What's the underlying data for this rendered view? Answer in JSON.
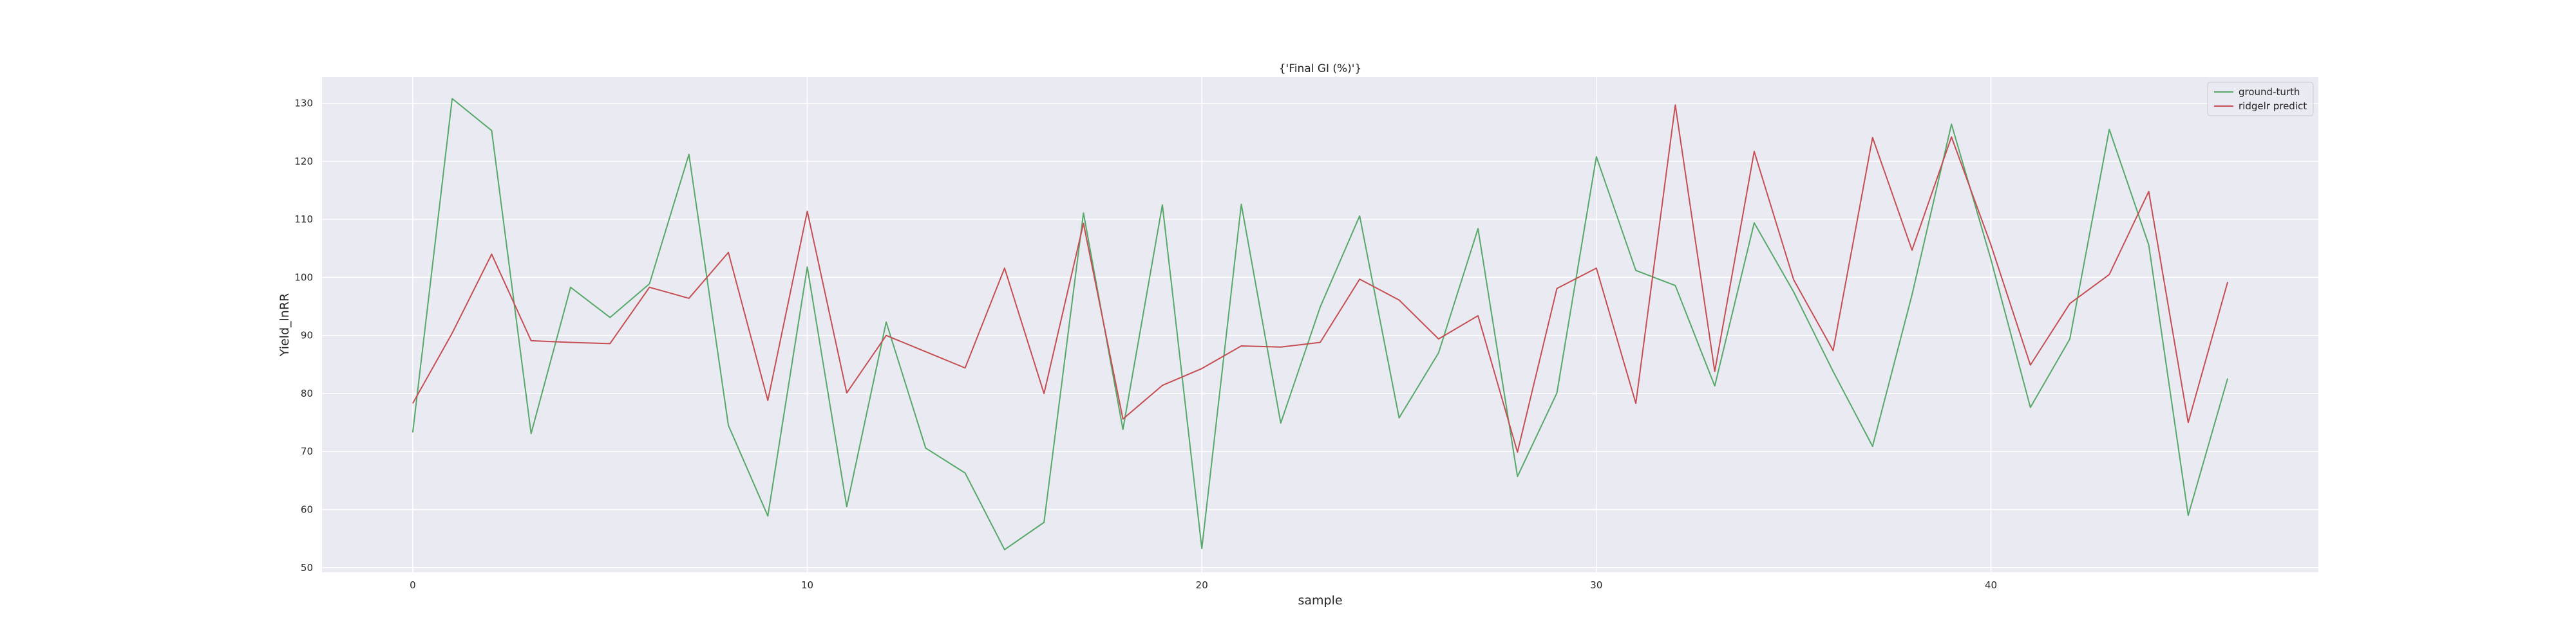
{
  "chart_data": {
    "type": "line",
    "title": "{'Final GI (%)'}",
    "xlabel": "sample",
    "ylabel": "Yield_lnRR",
    "xlim": [
      -2.3,
      48.3
    ],
    "ylim": [
      49.2,
      134.5
    ],
    "xticks": [
      0,
      10,
      20,
      30,
      40
    ],
    "yticks": [
      50,
      60,
      70,
      80,
      90,
      100,
      110,
      120,
      130
    ],
    "grid": true,
    "legend_position": "top-right",
    "series": [
      {
        "name": "ground-turth",
        "color": "#55a868",
        "values": [
          73.3,
          130.8,
          125.3,
          73.1,
          98.3,
          93.1,
          98.9,
          121.2,
          74.5,
          58.9,
          101.8,
          60.5,
          92.3,
          70.6,
          66.3,
          53.1,
          57.8,
          111.1,
          73.8,
          112.5,
          53.3,
          112.6,
          74.9,
          94.9,
          110.6,
          75.8,
          87.0,
          108.4,
          65.7,
          80.1,
          120.8,
          101.2,
          98.6,
          81.3,
          109.4,
          97.5,
          83.8,
          70.9,
          97.0,
          126.4,
          103.1,
          77.6,
          89.4,
          125.5,
          105.6,
          59.0,
          82.6
        ]
      },
      {
        "name": "ridgelr predict",
        "color": "#c44e52",
        "values": [
          78.3,
          90.4,
          104.0,
          89.1,
          88.8,
          88.6,
          98.3,
          96.4,
          104.3,
          78.8,
          111.4,
          80.1,
          90.0,
          87.2,
          84.4,
          101.6,
          80.0,
          109.3,
          75.6,
          81.4,
          84.3,
          88.2,
          88.0,
          88.8,
          99.7,
          96.1,
          89.4,
          93.4,
          69.9,
          98.1,
          101.6,
          78.3,
          129.7,
          83.8,
          121.7,
          99.6,
          87.4,
          124.1,
          104.7,
          124.2,
          105.6,
          84.9,
          95.5,
          100.5,
          114.8,
          75.0,
          99.2
        ]
      }
    ]
  }
}
